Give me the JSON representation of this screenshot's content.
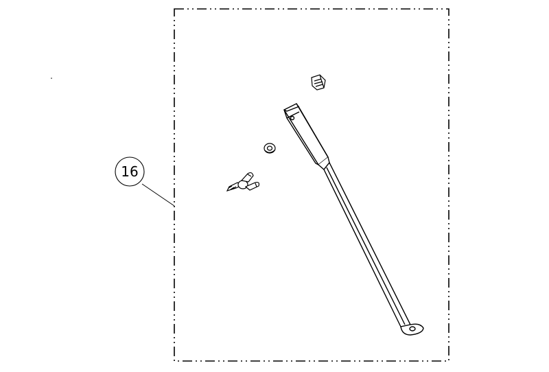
{
  "diagram": {
    "callouts": [
      {
        "label": "16"
      }
    ],
    "colors": {
      "line": "#000000",
      "fill": "#ffffff",
      "part_fill": "#f2f2f2"
    },
    "parts": [
      "wing-nut",
      "washer",
      "clip-nut",
      "support-rod"
    ]
  }
}
